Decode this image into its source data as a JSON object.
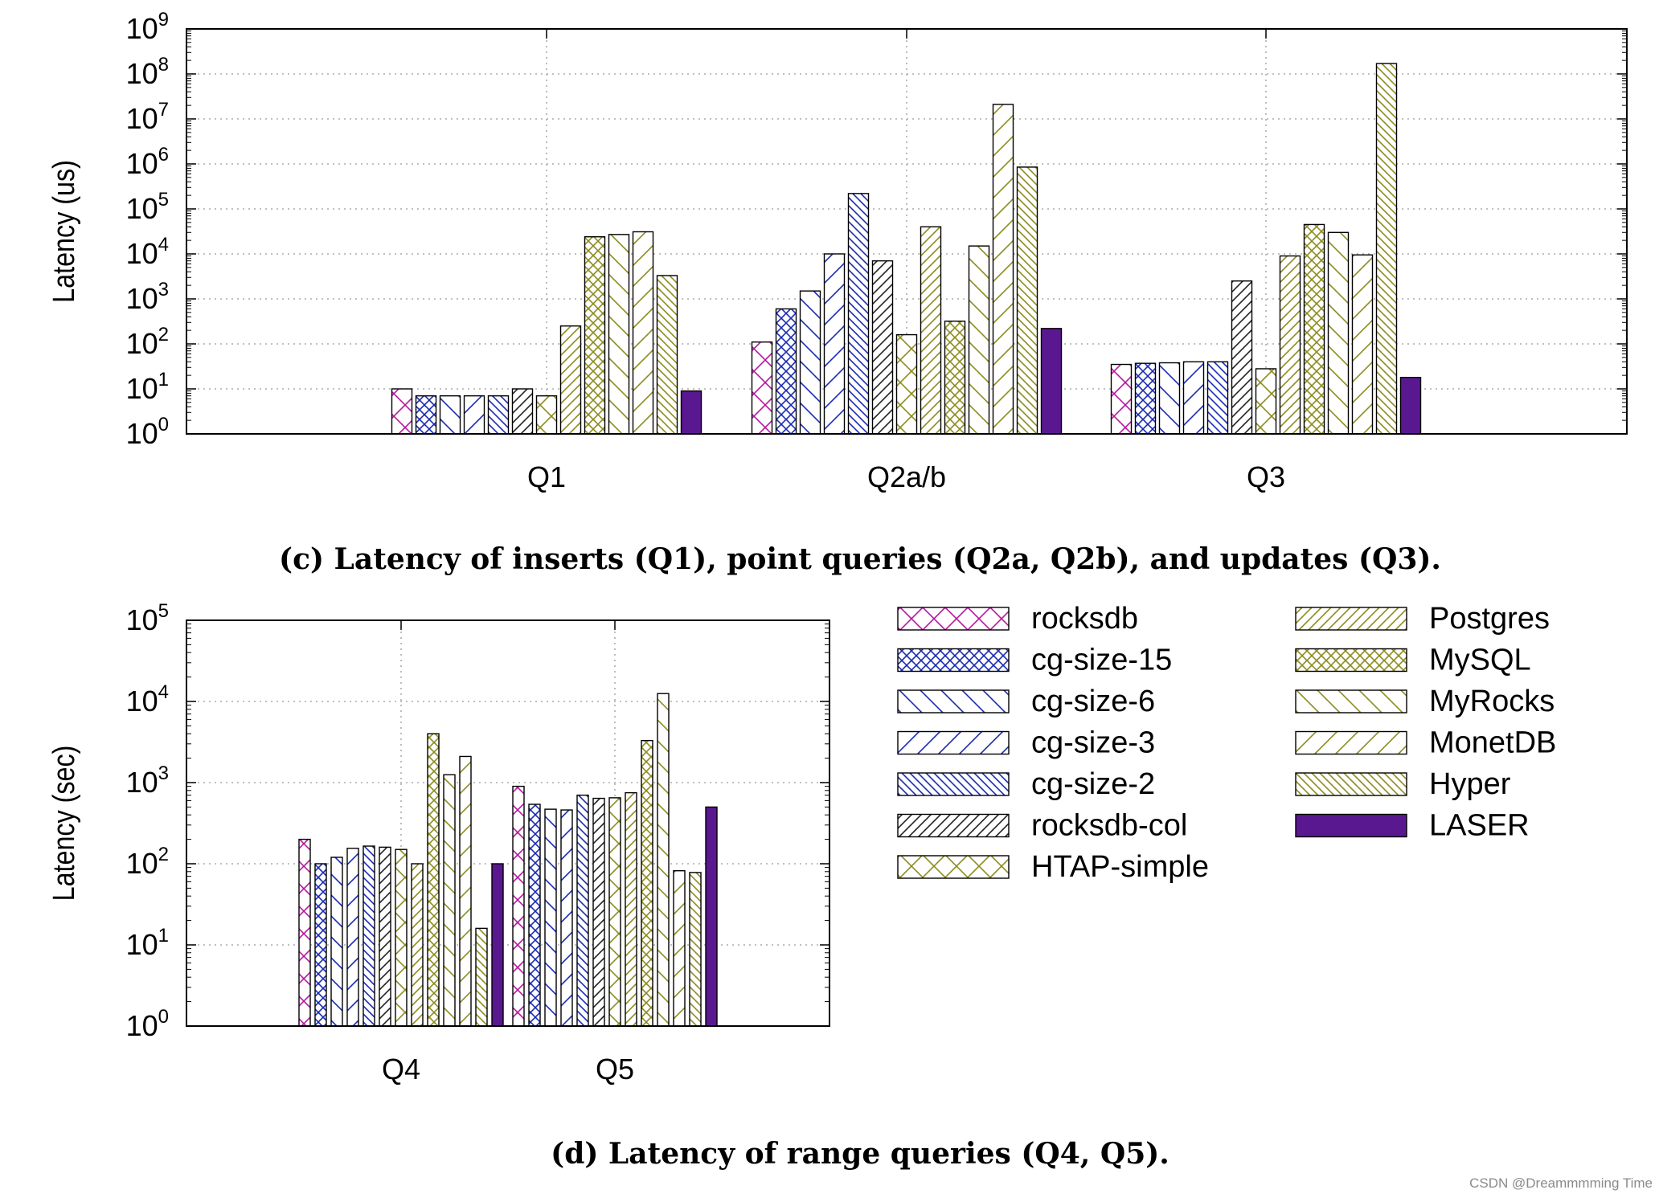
{
  "colors": {
    "rocksdb": "#b5179e",
    "cg": "#1a2bb0",
    "olive": "#8c8b1e",
    "laser": "#5a1890",
    "axis": "#000000",
    "grid": "#9a9a9a"
  },
  "legend": {
    "items": [
      {
        "label": "rocksdb",
        "color": "#b5179e",
        "pattern": "cross",
        "fill": false
      },
      {
        "label": "cg-size-15",
        "color": "#1a2bb0",
        "pattern": "dense-cross",
        "fill": false
      },
      {
        "label": "cg-size-6",
        "color": "#1a2bb0",
        "pattern": "back-wide",
        "fill": false
      },
      {
        "label": "cg-size-3",
        "color": "#1a2bb0",
        "pattern": "fwd-wide",
        "fill": false
      },
      {
        "label": "cg-size-2",
        "color": "#1a2bb0",
        "pattern": "back-dense",
        "fill": false
      },
      {
        "label": "rocksdb-col",
        "color": "#222222",
        "pattern": "fwd-dense",
        "fill": false
      },
      {
        "label": "HTAP-simple",
        "color": "#8c8b1e",
        "pattern": "cross",
        "fill": false
      },
      {
        "label": "Postgres",
        "color": "#8c8b1e",
        "pattern": "fwd-dense",
        "fill": false
      },
      {
        "label": "MySQL",
        "color": "#8c8b1e",
        "pattern": "dense-cross",
        "fill": false
      },
      {
        "label": "MyRocks",
        "color": "#8c8b1e",
        "pattern": "back-wide",
        "fill": false
      },
      {
        "label": "MonetDB",
        "color": "#8c8b1e",
        "pattern": "fwd-wide",
        "fill": false
      },
      {
        "label": "Hyper",
        "color": "#8c8b1e",
        "pattern": "back-dense",
        "fill": false
      },
      {
        "label": "LASER",
        "color": "#5a1890",
        "pattern": "solid",
        "fill": true
      }
    ]
  },
  "chart_data": [
    {
      "type": "bar",
      "id": "c",
      "yscale": "log",
      "ylim": [
        1,
        1000000000
      ],
      "ylabel": "Latency (us)",
      "xlabel": "",
      "ytick_labels": [
        "10^0",
        "10^1",
        "10^2",
        "10^3",
        "10^4",
        "10^5",
        "10^6",
        "10^7",
        "10^8",
        "10^9"
      ],
      "categories": [
        "Q1",
        "Q2a/b",
        "Q3"
      ],
      "series": [
        {
          "name": "rocksdb",
          "values": [
            10,
            110,
            35
          ]
        },
        {
          "name": "cg-size-15",
          "values": [
            7,
            600,
            37
          ]
        },
        {
          "name": "cg-size-6",
          "values": [
            7,
            1500,
            38
          ]
        },
        {
          "name": "cg-size-3",
          "values": [
            7,
            10000,
            40
          ]
        },
        {
          "name": "cg-size-2",
          "values": [
            7,
            220000,
            40
          ]
        },
        {
          "name": "rocksdb-col",
          "values": [
            10,
            7000,
            2500
          ]
        },
        {
          "name": "HTAP-simple",
          "values": [
            7,
            160,
            28
          ]
        },
        {
          "name": "Postgres",
          "values": [
            250,
            40000,
            9000
          ]
        },
        {
          "name": "MySQL",
          "values": [
            24000,
            320,
            45000
          ]
        },
        {
          "name": "MyRocks",
          "values": [
            27000,
            15000,
            30000
          ]
        },
        {
          "name": "MonetDB",
          "values": [
            31000,
            21000000,
            9500
          ]
        },
        {
          "name": "Hyper",
          "values": [
            3300,
            850000,
            170000000
          ]
        },
        {
          "name": "LASER",
          "values": [
            9,
            220,
            18
          ]
        }
      ],
      "caption": "(c) Latency of inserts (Q1), point queries (Q2a, Q2b), and updates (Q3)."
    },
    {
      "type": "bar",
      "id": "d",
      "yscale": "log",
      "ylim": [
        1,
        100000
      ],
      "ylabel": "Latency (sec)",
      "xlabel": "",
      "ytick_labels": [
        "10^0",
        "10^1",
        "10^2",
        "10^3",
        "10^4",
        "10^5"
      ],
      "categories": [
        "Q4",
        "Q5"
      ],
      "series": [
        {
          "name": "rocksdb",
          "values": [
            200,
            900
          ]
        },
        {
          "name": "cg-size-15",
          "values": [
            100,
            540
          ]
        },
        {
          "name": "cg-size-6",
          "values": [
            120,
            470
          ]
        },
        {
          "name": "cg-size-3",
          "values": [
            155,
            460
          ]
        },
        {
          "name": "cg-size-2",
          "values": [
            165,
            700
          ]
        },
        {
          "name": "rocksdb-col",
          "values": [
            160,
            640
          ]
        },
        {
          "name": "HTAP-simple",
          "values": [
            150,
            650
          ]
        },
        {
          "name": "Postgres",
          "values": [
            100,
            750
          ]
        },
        {
          "name": "MySQL",
          "values": [
            4000,
            3300
          ]
        },
        {
          "name": "MyRocks",
          "values": [
            1250,
            12500
          ]
        },
        {
          "name": "MonetDB",
          "values": [
            2100,
            82
          ]
        },
        {
          "name": "Hyper",
          "values": [
            16,
            78
          ]
        },
        {
          "name": "LASER",
          "values": [
            100,
            500
          ]
        }
      ],
      "caption": "(d) Latency of range queries (Q4, Q5)."
    }
  ],
  "watermark": "CSDN @Dreammmming Time"
}
